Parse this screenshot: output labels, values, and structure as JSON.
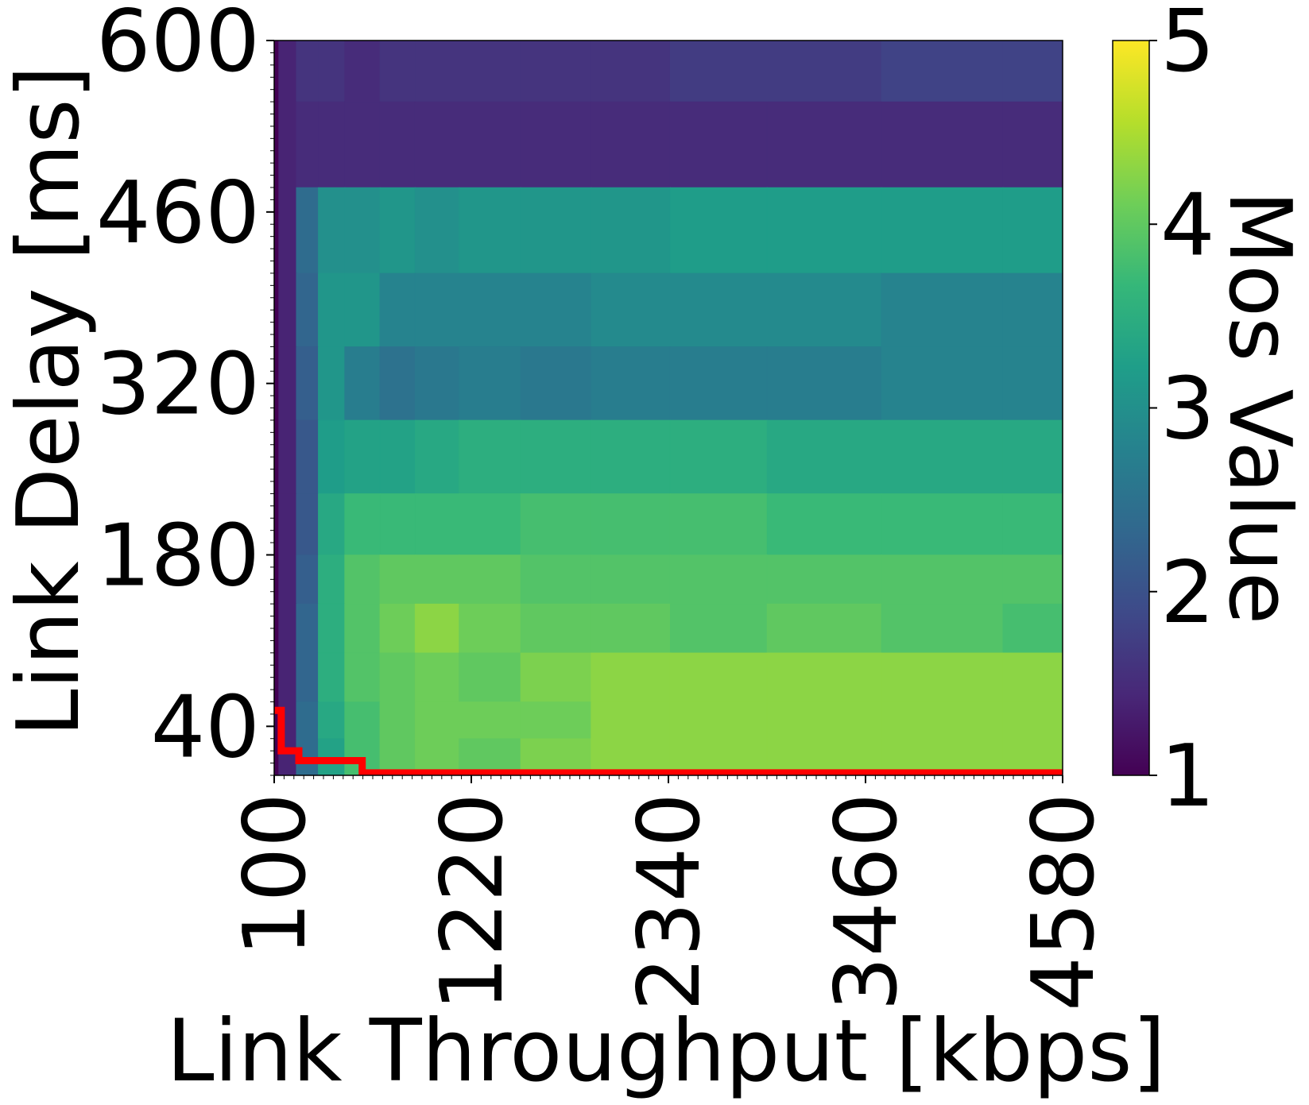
{
  "chart_data": {
    "type": "heatmap",
    "title": "",
    "xlabel": "Link Throughput [kbps]",
    "ylabel": "Link Delay [ms]",
    "xlim": [
      100,
      4580
    ],
    "ylim": [
      0,
      600
    ],
    "x_ticks": [
      "100",
      "1220",
      "2340",
      "3460",
      "4580"
    ],
    "y_ticks": [
      "40",
      "180",
      "320",
      "460",
      "600"
    ],
    "colorbar": {
      "label": "Mos Value",
      "range": [
        1,
        5
      ],
      "ticks": [
        "1",
        "2",
        "3",
        "4",
        "5"
      ],
      "colormap": "viridis"
    },
    "mos_grid": {
      "x_kbps": [
        100,
        150,
        300,
        400,
        600,
        800,
        1000,
        1300,
        1700,
        2100,
        2600,
        3200,
        3900,
        4580
      ],
      "y_delay_ms": [
        580,
        520,
        440,
        380,
        320,
        260,
        200,
        160,
        120,
        80,
        40,
        20
      ],
      "values": [
        [
          1.0,
          1.4,
          1.6,
          1.6,
          1.5,
          1.6,
          1.6,
          1.6,
          1.6,
          1.6,
          1.7,
          1.7,
          1.8,
          1.8
        ],
        [
          1.0,
          1.4,
          1.5,
          1.5,
          1.5,
          1.5,
          1.5,
          1.5,
          1.5,
          1.5,
          1.5,
          1.5,
          1.5,
          1.5
        ],
        [
          1.0,
          1.4,
          2.4,
          3.0,
          3.0,
          3.1,
          3.0,
          3.1,
          3.1,
          3.1,
          3.2,
          3.2,
          3.2,
          3.2
        ],
        [
          1.0,
          1.4,
          2.3,
          3.1,
          3.1,
          2.8,
          2.8,
          2.8,
          2.8,
          2.9,
          2.9,
          2.9,
          2.8,
          2.8
        ],
        [
          1.0,
          1.4,
          2.2,
          3.1,
          2.7,
          2.5,
          2.6,
          2.7,
          2.6,
          2.7,
          2.7,
          2.7,
          2.8,
          2.8
        ],
        [
          1.0,
          1.4,
          2.1,
          3.2,
          3.3,
          3.3,
          3.4,
          3.5,
          3.5,
          3.5,
          3.5,
          3.4,
          3.4,
          3.4
        ],
        [
          1.0,
          1.4,
          2.1,
          3.4,
          3.7,
          3.7,
          3.7,
          3.7,
          3.8,
          3.8,
          3.8,
          3.7,
          3.7,
          3.7
        ],
        [
          1.0,
          1.4,
          2.2,
          3.5,
          3.9,
          4.0,
          4.0,
          4.0,
          3.9,
          3.9,
          3.9,
          3.9,
          3.9,
          3.9
        ],
        [
          1.0,
          1.4,
          2.3,
          3.5,
          3.9,
          4.1,
          4.3,
          4.1,
          4.0,
          4.0,
          3.9,
          4.0,
          3.9,
          3.8
        ],
        [
          1.0,
          1.4,
          2.3,
          3.5,
          3.9,
          4.0,
          4.1,
          4.0,
          4.2,
          4.3,
          4.3,
          4.3,
          4.3,
          4.3
        ],
        [
          1.0,
          1.4,
          2.4,
          3.4,
          3.8,
          4.0,
          4.1,
          4.1,
          4.1,
          4.3,
          4.3,
          4.3,
          4.3,
          4.3
        ],
        [
          1.0,
          1.4,
          2.4,
          3.3,
          3.8,
          4.0,
          4.1,
          4.0,
          4.2,
          4.3,
          4.3,
          4.3,
          4.3,
          4.3
        ]
      ]
    },
    "threshold_line": {
      "color": "#ff0000",
      "points": [
        [
          100,
          53
        ],
        [
          140,
          53
        ],
        [
          140,
          20
        ],
        [
          240,
          20
        ],
        [
          240,
          12
        ],
        [
          600,
          12
        ],
        [
          600,
          2
        ],
        [
          4580,
          2
        ]
      ]
    }
  }
}
